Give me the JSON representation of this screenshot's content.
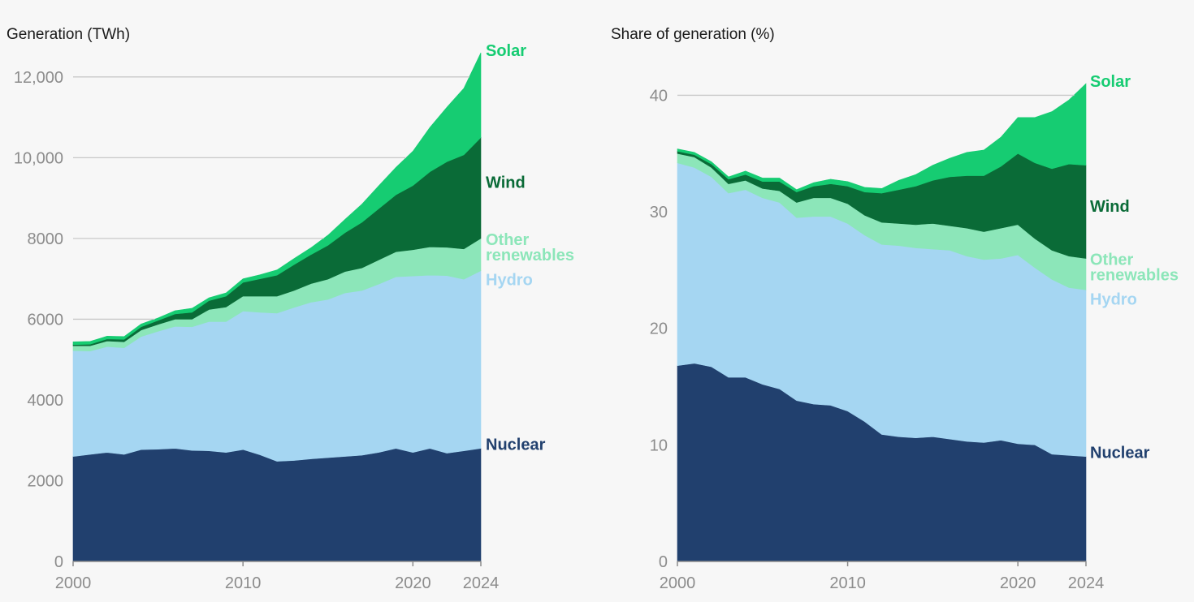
{
  "chart_data": [
    {
      "type": "area",
      "stacked": true,
      "title": "Generation (TWh)",
      "xlabel": "",
      "ylabel": "",
      "xlim": [
        2000,
        2024
      ],
      "ylim": [
        0,
        12700
      ],
      "grid": true,
      "x_ticks": [
        2000,
        2010,
        2020,
        2024
      ],
      "x_tick_labels": [
        "2000",
        "2010",
        "2020",
        "2024"
      ],
      "y_ticks": [
        0,
        2000,
        4000,
        6000,
        8000,
        10000,
        12000
      ],
      "y_tick_labels": [
        "0",
        "2000",
        "4000",
        "6000",
        "8000",
        "10,000",
        "12,000"
      ],
      "x": [
        2000,
        2001,
        2002,
        2003,
        2004,
        2005,
        2006,
        2007,
        2008,
        2009,
        2010,
        2011,
        2012,
        2013,
        2014,
        2015,
        2016,
        2017,
        2018,
        2019,
        2020,
        2021,
        2022,
        2023,
        2024
      ],
      "series": [
        {
          "name": "Nuclear",
          "label": "Nuclear",
          "color": "#21406e",
          "values": [
            2600,
            2650,
            2700,
            2650,
            2770,
            2780,
            2800,
            2750,
            2740,
            2700,
            2770,
            2640,
            2480,
            2500,
            2540,
            2570,
            2600,
            2630,
            2700,
            2800,
            2700,
            2800,
            2680,
            2740,
            2800
          ]
        },
        {
          "name": "Hydro",
          "label": "Hydro",
          "color": "#a5d6f2",
          "values": [
            2620,
            2560,
            2620,
            2640,
            2800,
            2920,
            3020,
            3060,
            3200,
            3240,
            3430,
            3530,
            3670,
            3790,
            3880,
            3920,
            4050,
            4080,
            4170,
            4250,
            4370,
            4290,
            4400,
            4250,
            4400
          ]
        },
        {
          "name": "Other renewables",
          "label_lines": [
            "Other",
            "renewables"
          ],
          "color": "#8ce6b9",
          "values": [
            120,
            130,
            140,
            150,
            160,
            170,
            180,
            190,
            300,
            360,
            370,
            400,
            420,
            420,
            460,
            500,
            530,
            560,
            600,
            620,
            650,
            700,
            700,
            750,
            800
          ]
        },
        {
          "name": "Wind",
          "label": "Wind",
          "color": "#0a6b37",
          "values": [
            30,
            40,
            50,
            60,
            80,
            100,
            130,
            170,
            220,
            270,
            340,
            430,
            520,
            640,
            720,
            840,
            960,
            1130,
            1270,
            1410,
            1590,
            1860,
            2120,
            2330,
            2500
          ]
        },
        {
          "name": "Solar",
          "label": "Solar",
          "color": "#16cc72",
          "values": [
            70,
            70,
            70,
            70,
            70,
            60,
            80,
            100,
            70,
            80,
            90,
            100,
            130,
            150,
            170,
            250,
            330,
            450,
            570,
            680,
            850,
            1100,
            1350,
            1650,
            2100
          ]
        }
      ]
    },
    {
      "type": "area",
      "stacked": true,
      "title": "Share of generation (%)",
      "xlabel": "",
      "ylabel": "",
      "xlim": [
        2000,
        2024
      ],
      "ylim": [
        0,
        44
      ],
      "grid": true,
      "x_ticks": [
        2000,
        2010,
        2020,
        2024
      ],
      "x_tick_labels": [
        "2000",
        "2010",
        "2020",
        "2024"
      ],
      "y_ticks": [
        0,
        10,
        20,
        30,
        40
      ],
      "y_tick_labels": [
        "0",
        "10",
        "20",
        "30",
        "40"
      ],
      "x": [
        2000,
        2001,
        2002,
        2003,
        2004,
        2005,
        2006,
        2007,
        2008,
        2009,
        2010,
        2011,
        2012,
        2013,
        2014,
        2015,
        2016,
        2017,
        2018,
        2019,
        2020,
        2021,
        2022,
        2023,
        2024
      ],
      "series": [
        {
          "name": "Nuclear",
          "label": "Nuclear",
          "color": "#21406e",
          "values": [
            16.8,
            17.0,
            16.7,
            15.8,
            15.8,
            15.2,
            14.8,
            13.8,
            13.5,
            13.4,
            12.9,
            12.0,
            10.9,
            10.7,
            10.6,
            10.7,
            10.5,
            10.3,
            10.2,
            10.4,
            10.1,
            10.0,
            9.2,
            9.1,
            9.0
          ]
        },
        {
          "name": "Hydro",
          "label": "Hydro",
          "color": "#a5d6f2",
          "values": [
            17.4,
            16.8,
            16.3,
            15.8,
            16.1,
            16.0,
            16.0,
            15.7,
            16.1,
            16.2,
            16.1,
            16.0,
            16.3,
            16.4,
            16.3,
            16.1,
            16.2,
            15.9,
            15.7,
            15.6,
            16.2,
            15.2,
            15.0,
            14.4,
            14.3
          ]
        },
        {
          "name": "Other renewables",
          "label_lines": [
            "Other",
            "renewables"
          ],
          "color": "#8ce6b9",
          "values": [
            0.8,
            0.9,
            0.8,
            0.8,
            0.8,
            0.8,
            1.0,
            1.3,
            1.6,
            1.6,
            1.7,
            1.7,
            1.9,
            1.9,
            2.0,
            2.2,
            2.1,
            2.4,
            2.4,
            2.6,
            2.6,
            2.5,
            2.5,
            2.7,
            2.7
          ]
        },
        {
          "name": "Wind",
          "label": "Wind",
          "color": "#0a6b37",
          "values": [
            0.2,
            0.2,
            0.3,
            0.4,
            0.5,
            0.6,
            0.8,
            0.9,
            1.0,
            1.2,
            1.5,
            2.0,
            2.5,
            2.9,
            3.3,
            3.7,
            4.2,
            4.5,
            4.8,
            5.3,
            6.1,
            6.5,
            7.0,
            7.9,
            8.0
          ]
        },
        {
          "name": "Solar",
          "label": "Solar",
          "color": "#16cc72",
          "values": [
            0.2,
            0.2,
            0.2,
            0.2,
            0.3,
            0.3,
            0.3,
            0.2,
            0.3,
            0.4,
            0.4,
            0.4,
            0.4,
            0.8,
            1.0,
            1.3,
            1.6,
            2.0,
            2.2,
            2.5,
            3.1,
            3.9,
            4.9,
            5.5,
            7.0
          ]
        }
      ]
    }
  ]
}
